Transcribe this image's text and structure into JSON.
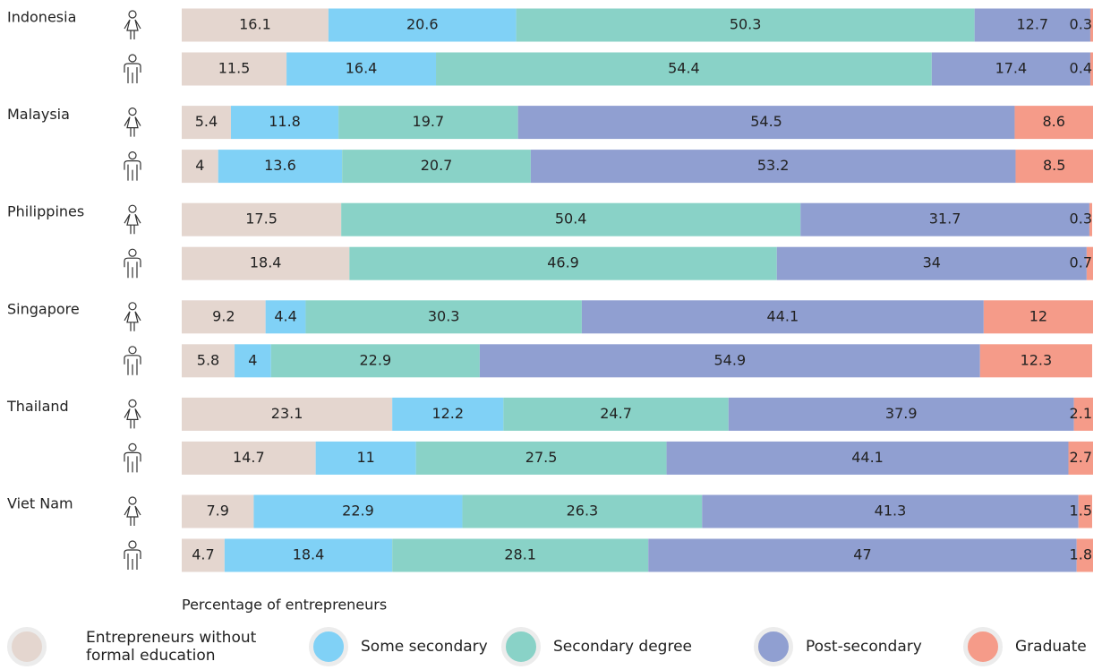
{
  "chart_data": {
    "type": "stacked-bar-horizontal",
    "xlabel": "Percentage of entrepreneurs",
    "categories": [
      "Indonesia",
      null,
      "Malaysia",
      null,
      "Philippines",
      null,
      "Singapore",
      null,
      "Thailand",
      null,
      "Viet Nam",
      null
    ],
    "xlim": [
      0,
      100
    ],
    "series": [
      {
        "name": "Entrepreneurs without formal education",
        "color": "#e4d6cf",
        "values": [
          16.1,
          11.5,
          5.4,
          4,
          17.5,
          18.4,
          9.2,
          5.8,
          23.1,
          14.7,
          7.9,
          4.7
        ]
      },
      {
        "name": "Some secondary",
        "color": "#80d1f6",
        "values": [
          20.6,
          16.4,
          11.8,
          13.6,
          null,
          null,
          4.4,
          4,
          12.2,
          11,
          22.9,
          18.4
        ]
      },
      {
        "name": "Secondary degree",
        "color": "#89d2c7",
        "values": [
          50.3,
          54.4,
          19.7,
          20.7,
          50.4,
          46.9,
          30.3,
          22.9,
          24.7,
          27.5,
          26.3,
          28.1
        ]
      },
      {
        "name": "Post-secondary",
        "color": "#909fd1",
        "values": [
          12.7,
          17.4,
          54.5,
          53.2,
          31.7,
          34,
          44.1,
          54.9,
          37.9,
          44.1,
          41.3,
          47
        ]
      },
      {
        "name": "Graduate",
        "color": "#f59b89",
        "values": [
          0.3,
          0.4,
          8.6,
          8.5,
          0.3,
          0.7,
          12,
          12.3,
          2.1,
          2.7,
          1.5,
          1.8
        ]
      }
    ]
  }
}
